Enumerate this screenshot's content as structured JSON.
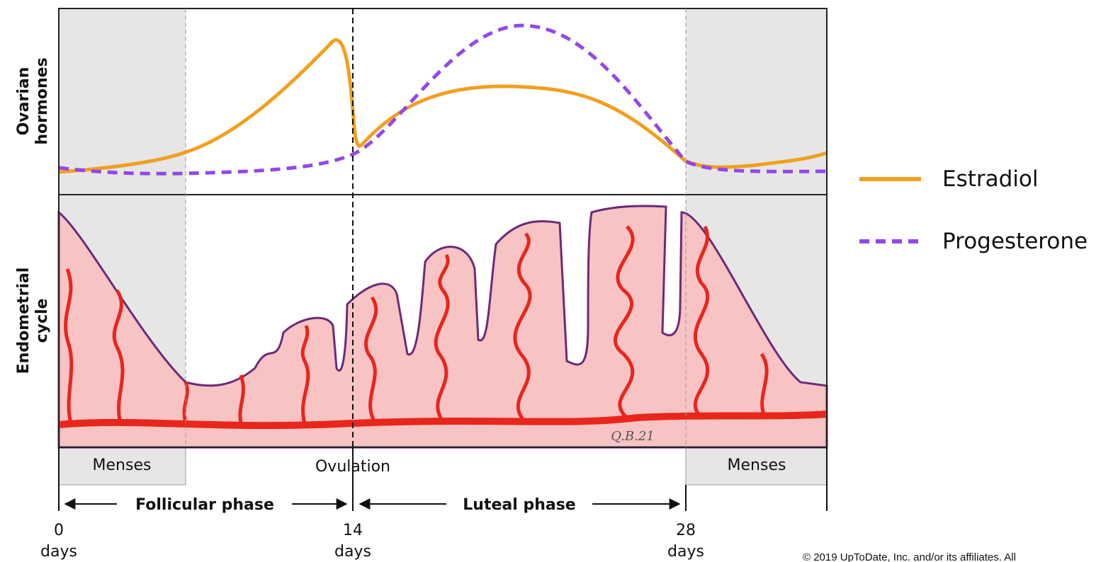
{
  "panels": {
    "top": [
      "Ovarian",
      "hormones"
    ],
    "bottom": [
      "Endometrial",
      "cycle"
    ]
  },
  "events": {
    "menses_start": "Menses",
    "ovulation": "Ovulation",
    "menses_end": "Menses"
  },
  "phases": {
    "follicular": "Follicular phase",
    "luteal": "Luteal phase"
  },
  "days": [
    {
      "number": "0",
      "unit": "days"
    },
    {
      "number": "14",
      "unit": "days"
    },
    {
      "number": "28",
      "unit": "days"
    }
  ],
  "legend": [
    "Estradiol",
    "Progesterone"
  ],
  "signature": "Q.B.21",
  "copyright": "© 2019 UpToDate, Inc. and/or its affiliates. All"
}
